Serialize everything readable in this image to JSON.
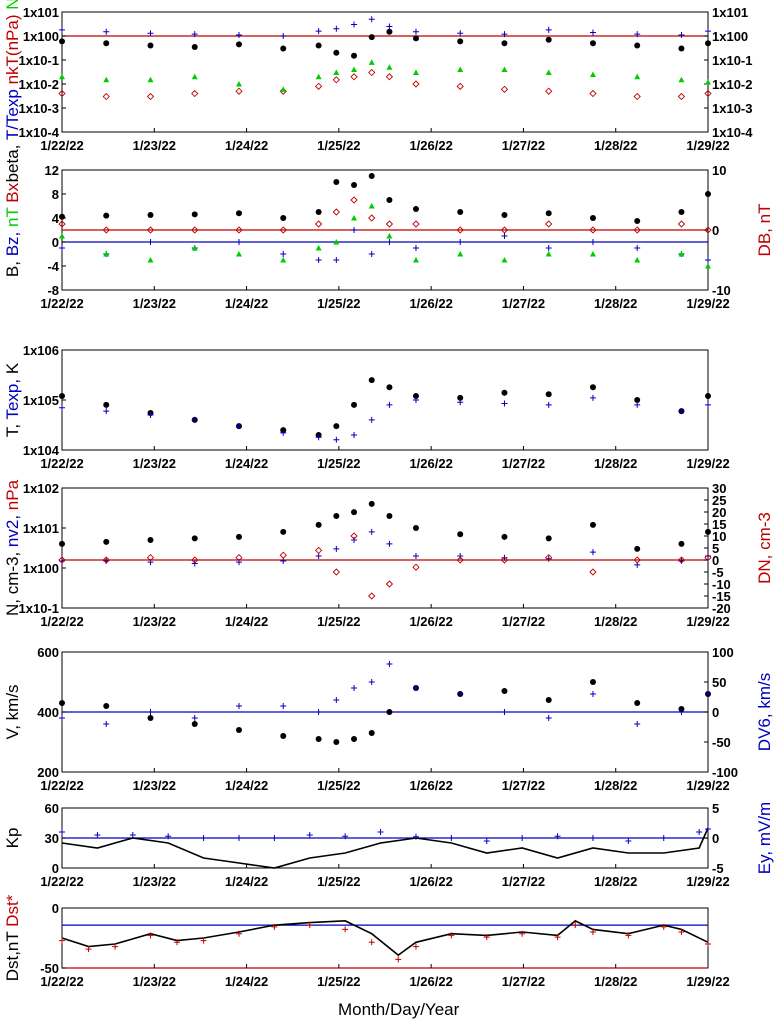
{
  "x_axis": {
    "ticks": [
      "1/22/22",
      "1/23/22",
      "1/24/22",
      "1/25/22",
      "1/26/22",
      "1/27/22",
      "1/28/22",
      "1/29/22"
    ],
    "label": "Month/Day/Year"
  },
  "chart_data": [
    {
      "type": "scatter",
      "log_scale": true,
      "left_axis": {
        "labels": [
          "beta,",
          "T/Texp",
          "nkT(nPa)",
          "Na/Np"
        ],
        "ticks": [
          "1x10-4",
          "1x10-3",
          "1x10-2",
          "1x10-1",
          "1x100",
          "1x101"
        ]
      },
      "right_axis": {
        "ticks": [
          "1x10-4",
          "1x10-3",
          "1x10-2",
          "1x10-1",
          "1x100",
          "1x101"
        ]
      },
      "ylim": [
        0.0001,
        10
      ],
      "reference_line": {
        "value": 1,
        "color": "#c00000"
      },
      "series": [
        {
          "name": "beta",
          "color": "#000000",
          "marker": "dot",
          "x": [
            0,
            0.5,
            1,
            1.5,
            2,
            2.5,
            2.9,
            3.1,
            3.3,
            3.5,
            3.7,
            4,
            4.5,
            5,
            5.5,
            6,
            6.5,
            7,
            7.3
          ],
          "y": [
            0.6,
            0.5,
            0.4,
            0.35,
            0.45,
            0.3,
            0.4,
            0.2,
            0.15,
            0.9,
            1.5,
            0.8,
            0.6,
            0.5,
            0.7,
            0.5,
            0.4,
            0.3,
            0.5
          ]
        },
        {
          "name": "T/Texp",
          "color": "#0000c0",
          "marker": "plus",
          "x": [
            0,
            0.5,
            1,
            1.5,
            2,
            2.5,
            2.9,
            3.1,
            3.3,
            3.5,
            3.7,
            4,
            4.5,
            5,
            5.5,
            6,
            6.5,
            7,
            7.3
          ],
          "y": [
            1.8,
            1.5,
            1.3,
            1.2,
            1.1,
            1.0,
            1.6,
            2.0,
            3.0,
            5.0,
            2.5,
            1.5,
            1.3,
            1.2,
            1.8,
            1.4,
            1.2,
            1.1,
            1.6
          ]
        },
        {
          "name": "nkT(nPa)",
          "color": "#c00000",
          "marker": "diamond",
          "x": [
            0,
            0.5,
            1,
            1.5,
            2,
            2.5,
            2.9,
            3.1,
            3.3,
            3.5,
            3.7,
            4,
            4.5,
            5,
            5.5,
            6,
            6.5,
            7,
            7.3
          ],
          "y": [
            0.004,
            0.003,
            0.003,
            0.004,
            0.005,
            0.005,
            0.008,
            0.015,
            0.02,
            0.03,
            0.02,
            0.01,
            0.008,
            0.006,
            0.005,
            0.004,
            0.003,
            0.003,
            0.004
          ]
        },
        {
          "name": "Na/Np",
          "color": "#00cc00",
          "marker": "triangle",
          "x": [
            0,
            0.5,
            1,
            1.5,
            2,
            2.5,
            2.9,
            3.1,
            3.3,
            3.5,
            3.7,
            4,
            4.5,
            5,
            5.5,
            6,
            6.5,
            7,
            7.3
          ],
          "y": [
            0.02,
            0.015,
            0.015,
            0.02,
            0.01,
            0.006,
            0.02,
            0.03,
            0.04,
            0.08,
            0.05,
            0.03,
            0.04,
            0.04,
            0.03,
            0.025,
            0.02,
            0.015,
            0.012
          ]
        }
      ]
    },
    {
      "type": "scatter",
      "left_axis": {
        "labels": [
          "B,",
          "Bz,",
          "nT",
          "Bx"
        ],
        "ticks": [
          "-8",
          "-4",
          "0",
          "4",
          "8",
          "12"
        ]
      },
      "right_axis": {
        "labels": [
          "DB, nT"
        ],
        "ticks": [
          "-10",
          "0",
          "10"
        ]
      },
      "ylim": [
        -8,
        12
      ],
      "right_ylim": [
        -10,
        10
      ],
      "reference_lines": [
        {
          "value": 0,
          "color": "#0000c0"
        },
        {
          "value": 2,
          "color": "#c00000"
        }
      ],
      "series": [
        {
          "name": "B",
          "color": "#000000",
          "marker": "dot",
          "x": [
            0,
            0.5,
            1,
            1.5,
            2,
            2.5,
            2.9,
            3.1,
            3.3,
            3.5,
            3.7,
            4,
            4.5,
            5,
            5.5,
            6,
            6.5,
            7,
            7.3
          ],
          "y": [
            4.2,
            4.4,
            4.5,
            4.6,
            4.8,
            4.0,
            5.0,
            10.0,
            9.5,
            11.0,
            7.0,
            5.5,
            5.0,
            4.5,
            4.8,
            4.0,
            3.5,
            5.0,
            8.0
          ]
        },
        {
          "name": "Bz",
          "color": "#0000c0",
          "marker": "plus",
          "x": [
            0,
            0.5,
            1,
            1.5,
            2,
            2.5,
            2.9,
            3.1,
            3.3,
            3.5,
            3.7,
            4,
            4.5,
            5,
            5.5,
            6,
            6.5,
            7,
            7.3
          ],
          "y": [
            -1,
            -2,
            0,
            -1,
            0,
            -2,
            -3,
            -3,
            2,
            -2,
            0,
            -1,
            0,
            1,
            -1,
            0,
            -1,
            -2,
            -3
          ]
        },
        {
          "name": "Bx",
          "color": "#00cc00",
          "marker": "triangle",
          "x": [
            0,
            0.5,
            1,
            1.5,
            2,
            2.5,
            2.9,
            3.1,
            3.3,
            3.5,
            3.7,
            4,
            4.5,
            5,
            5.5,
            6,
            6.5,
            7,
            7.3
          ],
          "y": [
            1,
            -2,
            -3,
            -1,
            -2,
            -3,
            -1,
            0,
            4,
            6,
            1,
            -3,
            -2,
            -3,
            -2,
            -2,
            -3,
            -2,
            -4
          ]
        },
        {
          "name": "DB",
          "color": "#c00000",
          "marker": "diamond",
          "x": [
            0,
            0.5,
            1,
            1.5,
            2,
            2.5,
            2.9,
            3.1,
            3.3,
            3.5,
            3.7,
            4,
            4.5,
            5,
            5.5,
            6,
            6.5,
            7,
            7.3
          ],
          "y": [
            1,
            0,
            0,
            0,
            0,
            0,
            1,
            3,
            5,
            2,
            1,
            1,
            0,
            0,
            1,
            0,
            0,
            1,
            0
          ],
          "axis": "right"
        }
      ]
    },
    {
      "type": "scatter",
      "log_scale": true,
      "left_axis": {
        "labels": [
          "T,",
          "Texp,",
          "K"
        ],
        "ticks": [
          "1x104",
          "1x105",
          "1x106"
        ]
      },
      "ylim": [
        10000,
        1000000
      ],
      "series": [
        {
          "name": "T",
          "color": "#000000",
          "marker": "dot",
          "x": [
            0,
            0.5,
            1,
            1.5,
            2,
            2.5,
            2.9,
            3.1,
            3.3,
            3.5,
            3.7,
            4,
            4.5,
            5,
            5.5,
            6,
            6.5,
            7,
            7.3
          ],
          "y": [
            120000,
            80000,
            55000,
            40000,
            30000,
            25000,
            20000,
            30000,
            80000,
            250000,
            180000,
            120000,
            110000,
            140000,
            130000,
            180000,
            100000,
            60000,
            120000
          ]
        },
        {
          "name": "Texp",
          "color": "#0000c0",
          "marker": "plus",
          "x": [
            0,
            0.5,
            1,
            1.5,
            2,
            2.5,
            2.9,
            3.1,
            3.3,
            3.5,
            3.7,
            4,
            4.5,
            5,
            5.5,
            6,
            6.5,
            7,
            7.3
          ],
          "y": [
            70000,
            60000,
            50000,
            40000,
            30000,
            22000,
            18000,
            16000,
            20000,
            40000,
            80000,
            100000,
            90000,
            85000,
            80000,
            110000,
            80000,
            60000,
            80000
          ]
        }
      ]
    },
    {
      "type": "scatter",
      "log_scale": true,
      "left_axis": {
        "labels": [
          "N, cm-3,",
          "nv2,",
          "nPa"
        ],
        "ticks": [
          "1x10-1",
          "1x100",
          "1x101",
          "1x102"
        ]
      },
      "right_axis": {
        "labels": [
          "DN, cm-3"
        ],
        "ticks": [
          "-20",
          "-15",
          "-10",
          "-5",
          "0",
          "5",
          "10",
          "15",
          "20",
          "25",
          "30"
        ]
      },
      "ylim": [
        0.1,
        100
      ],
      "right_ylim": [
        -20,
        30
      ],
      "reference_line": {
        "value": 0,
        "axis": "right",
        "color": "#c00000"
      },
      "series": [
        {
          "name": "N",
          "color": "#000000",
          "marker": "dot",
          "x": [
            0,
            0.5,
            1,
            1.5,
            2,
            2.5,
            2.9,
            3.1,
            3.3,
            3.5,
            3.7,
            4,
            4.5,
            5,
            5.5,
            6,
            6.5,
            7,
            7.3
          ],
          "y": [
            4,
            4.5,
            5,
            5.5,
            6,
            8,
            12,
            20,
            25,
            40,
            20,
            10,
            7,
            6,
            5.5,
            12,
            3,
            4,
            8
          ]
        },
        {
          "name": "nv2",
          "color": "#0000c0",
          "marker": "plus",
          "x": [
            0,
            0.5,
            1,
            1.5,
            2,
            2.5,
            2.9,
            3.1,
            3.3,
            3.5,
            3.7,
            4,
            4.5,
            5,
            5.5,
            6,
            6.5,
            7,
            7.3
          ],
          "y": [
            1.5,
            1.5,
            1.4,
            1.3,
            1.4,
            1.5,
            2,
            3,
            5,
            8,
            4,
            2,
            2,
            1.8,
            1.7,
            2.5,
            1.2,
            1.5,
            2
          ]
        },
        {
          "name": "DN",
          "color": "#c00000",
          "marker": "diamond",
          "x": [
            0,
            0.5,
            1,
            1.5,
            2,
            2.5,
            2.9,
            3.1,
            3.3,
            3.5,
            3.7,
            4,
            4.5,
            5,
            5.5,
            6,
            6.5,
            7,
            7.3
          ],
          "y": [
            0,
            0,
            1,
            0,
            1,
            2,
            4,
            -5,
            10,
            -15,
            -10,
            -3,
            0,
            0,
            1,
            -5,
            0,
            0,
            1
          ],
          "axis": "right"
        }
      ]
    },
    {
      "type": "scatter",
      "left_axis": {
        "labels": [
          "V, km/s"
        ],
        "ticks": [
          "200",
          "400",
          "600"
        ]
      },
      "right_axis": {
        "labels": [
          "DV6, km/s"
        ],
        "ticks": [
          "-100",
          "-50",
          "0",
          "50",
          "100"
        ]
      },
      "ylim": [
        200,
        600
      ],
      "right_ylim": [
        -100,
        100
      ],
      "reference_line": {
        "value": 0,
        "axis": "right",
        "color": "#0000c0"
      },
      "series": [
        {
          "name": "V",
          "color": "#000000",
          "marker": "dot",
          "x": [
            0,
            0.5,
            1,
            1.5,
            2,
            2.5,
            2.9,
            3.1,
            3.3,
            3.5,
            3.7,
            4,
            4.5,
            5,
            5.5,
            6,
            6.5,
            7,
            7.3
          ],
          "y": [
            430,
            420,
            380,
            360,
            340,
            320,
            310,
            300,
            310,
            330,
            400,
            480,
            460,
            470,
            440,
            500,
            430,
            410,
            460
          ]
        },
        {
          "name": "DV6",
          "color": "#0000c0",
          "marker": "plus",
          "x": [
            0,
            0.5,
            1,
            1.5,
            2,
            2.5,
            2.9,
            3.1,
            3.3,
            3.5,
            3.7,
            4,
            4.5,
            5,
            5.5,
            6,
            6.5,
            7,
            7.3
          ],
          "y": [
            -10,
            -20,
            0,
            -10,
            10,
            10,
            0,
            20,
            40,
            50,
            80,
            40,
            30,
            0,
            -10,
            30,
            -20,
            0,
            30
          ],
          "axis": "right"
        }
      ]
    },
    {
      "type": "line",
      "left_axis": {
        "labels": [
          "Kp"
        ],
        "ticks": [
          "0",
          "30",
          "60"
        ]
      },
      "right_axis": {
        "labels": [
          "Ey,",
          "mV/m"
        ],
        "ticks": [
          "-5",
          "0",
          "5"
        ]
      },
      "ylim": [
        0,
        60
      ],
      "right_ylim": [
        -5,
        5
      ],
      "reference_line": {
        "value": 0,
        "axis": "right",
        "color": "#0000c0"
      },
      "series": [
        {
          "name": "Kp",
          "color": "#000000",
          "marker": "line",
          "x": [
            0,
            0.4,
            0.8,
            1.2,
            1.6,
            2,
            2.4,
            2.8,
            3.2,
            3.6,
            4,
            4.4,
            4.8,
            5.2,
            5.6,
            6,
            6.4,
            6.8,
            7.2,
            7.3
          ],
          "y": [
            25,
            20,
            30,
            25,
            10,
            5,
            0,
            10,
            15,
            25,
            30,
            25,
            15,
            20,
            10,
            20,
            15,
            15,
            20,
            40
          ]
        },
        {
          "name": "Ey",
          "color": "#0000c0",
          "marker": "plus",
          "x": [
            0,
            0.4,
            0.8,
            1.2,
            1.6,
            2,
            2.4,
            2.8,
            3.2,
            3.6,
            4,
            4.4,
            4.8,
            5.2,
            5.6,
            6,
            6.4,
            6.8,
            7.2,
            7.3
          ],
          "y": [
            1,
            0.5,
            0.5,
            0.3,
            0,
            0,
            0,
            0.5,
            0.3,
            1,
            0.2,
            0,
            -0.5,
            0,
            0.3,
            0,
            -0.5,
            0,
            1,
            1.5
          ],
          "axis": "right"
        }
      ]
    },
    {
      "type": "line",
      "left_axis": {
        "labels": [
          "Dst,nT",
          "Dst*"
        ],
        "ticks": [
          "-50",
          "0"
        ]
      },
      "ylim": [
        -50,
        20
      ],
      "reference_lines": [
        {
          "value": 0,
          "color": "#0000c0"
        },
        {
          "value": -50,
          "color": "#c00000"
        }
      ],
      "series": [
        {
          "name": "Dst",
          "color": "#000000",
          "marker": "line",
          "x": [
            0,
            0.3,
            0.6,
            1,
            1.3,
            1.6,
            2,
            2.4,
            2.8,
            3.2,
            3.5,
            3.8,
            4,
            4.4,
            4.8,
            5.2,
            5.6,
            5.8,
            6,
            6.4,
            6.8,
            7,
            7.3
          ],
          "y": [
            -15,
            -25,
            -22,
            -10,
            -18,
            -15,
            -8,
            0,
            3,
            5,
            -10,
            -35,
            -20,
            -10,
            -12,
            -8,
            -12,
            5,
            -5,
            -10,
            0,
            -5,
            -20
          ]
        },
        {
          "name": "Dst*",
          "color": "#c00000",
          "marker": "plus",
          "x": [
            0,
            0.3,
            0.6,
            1,
            1.3,
            1.6,
            2,
            2.4,
            2.8,
            3.2,
            3.5,
            3.8,
            4,
            4.4,
            4.8,
            5.2,
            5.6,
            5.8,
            6,
            6.4,
            6.8,
            7,
            7.3
          ],
          "y": [
            -18,
            -28,
            -25,
            -12,
            -20,
            -18,
            -10,
            -2,
            0,
            -5,
            -20,
            -40,
            -25,
            -12,
            -14,
            -10,
            -14,
            0,
            -8,
            -12,
            -2,
            -8,
            -22
          ]
        }
      ]
    }
  ]
}
